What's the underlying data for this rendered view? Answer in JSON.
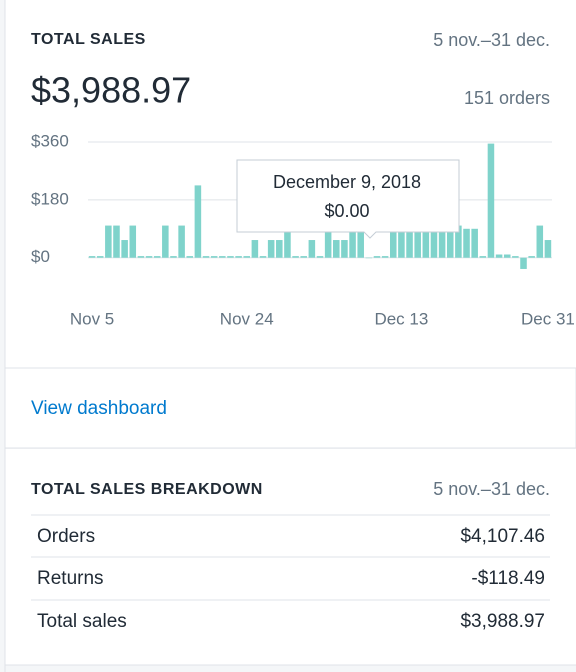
{
  "sales_card": {
    "title": "TOTAL SALES",
    "date_range": "5 nov.–31 dec.",
    "total": "$3,988.97",
    "orders": "151 orders",
    "chart_data": {
      "type": "bar",
      "color": "#7fd3cb",
      "categories": [
        "Nov 5",
        null,
        null,
        null,
        null,
        null,
        null,
        null,
        null,
        null,
        null,
        null,
        null,
        null,
        null,
        null,
        null,
        null,
        null,
        "Nov 24",
        null,
        null,
        null,
        null,
        null,
        null,
        null,
        null,
        null,
        null,
        null,
        null,
        null,
        null,
        null,
        null,
        null,
        null,
        "Dec 13",
        null,
        null,
        null,
        null,
        null,
        null,
        null,
        null,
        null,
        null,
        null,
        null,
        null,
        null,
        null,
        null,
        null,
        "Dec 31"
      ],
      "values": [
        5,
        5,
        100,
        100,
        55,
        100,
        5,
        5,
        5,
        100,
        5,
        100,
        5,
        225,
        5,
        5,
        5,
        5,
        5,
        5,
        55,
        5,
        55,
        55,
        90,
        5,
        5,
        55,
        5,
        90,
        55,
        55,
        90,
        90,
        0,
        5,
        5,
        100,
        100,
        100,
        100,
        100,
        100,
        100,
        100,
        100,
        90,
        90,
        5,
        355,
        10,
        10,
        5,
        -35,
        5,
        100,
        55
      ],
      "ylim": [
        -60,
        360
      ],
      "yticks": [
        {
          "value": 0,
          "label": "$0"
        },
        {
          "value": 180,
          "label": "$180"
        },
        {
          "value": 360,
          "label": "$360"
        }
      ],
      "grid": true,
      "tooltip": {
        "title": "December 9, 2018",
        "value": "$0.00"
      }
    }
  },
  "link": "View dashboard",
  "breakdown": {
    "title": "TOTAL SALES BREAKDOWN",
    "date_range": "5 nov.–31 dec.",
    "rows": [
      [
        "Orders",
        "$4,107.46"
      ],
      [
        "Returns",
        "-$118.49"
      ],
      [
        "Total sales",
        "$3,988.97"
      ]
    ]
  }
}
